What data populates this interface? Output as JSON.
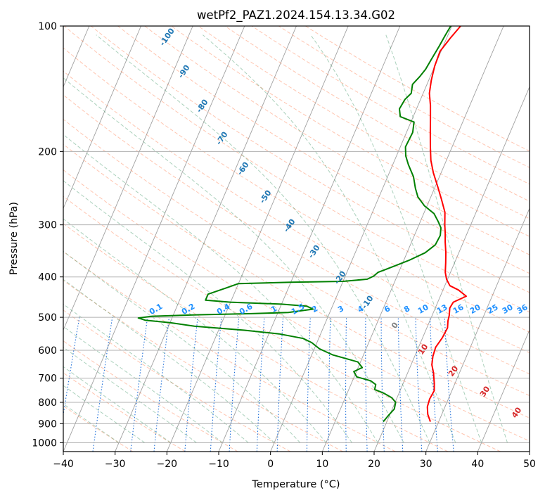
{
  "chart_data": {
    "type": "skew-t",
    "title": "wetPf2_PAZ1.2024.154.13.34.G02",
    "xlabel": "Temperature (°C)",
    "ylabel": "Pressure (hPa)",
    "xlim": [
      -40,
      50
    ],
    "ylim": [
      1050,
      100
    ],
    "y_scale": "log",
    "x_ticks": [
      -40,
      -30,
      -20,
      -10,
      0,
      10,
      20,
      30,
      40,
      50
    ],
    "x_tick_labels": [
      "−40",
      "−30",
      "−20",
      "−10",
      "0",
      "10",
      "20",
      "30",
      "40",
      "50"
    ],
    "y_ticks": [
      1000,
      900,
      800,
      700,
      600,
      500,
      400,
      300,
      200,
      100
    ],
    "y_tick_labels": [
      "1000",
      "900",
      "800",
      "700",
      "600",
      "500",
      "400",
      "300",
      "200",
      "100"
    ],
    "grid": true,
    "colors": {
      "temperature": "#ff0000",
      "dewpoint": "#008000",
      "dry_adiabat": "#ff7f50",
      "moist_adiabat": "#2e8b57",
      "mixing_ratio": "#1e6fd9",
      "isotherm": "#808080",
      "dry_label": "#1f77b4",
      "moist_label": "#d62728",
      "mixing_label": "#1e90ff"
    },
    "series": [
      {
        "points": [
          [
            28.4,
            890
          ],
          [
            27.3,
            855
          ],
          [
            26.6,
            820
          ],
          [
            26.4,
            785
          ],
          [
            26.6,
            750
          ],
          [
            26.0,
            720
          ],
          [
            25.5,
            700
          ],
          [
            25.0,
            680
          ],
          [
            24.0,
            650
          ],
          [
            23.5,
            620
          ],
          [
            23.3,
            590
          ],
          [
            23.8,
            560
          ],
          [
            24.0,
            530
          ],
          [
            23.5,
            510
          ],
          [
            23.3,
            495
          ],
          [
            22.8,
            475
          ],
          [
            23.0,
            460
          ],
          [
            25.0,
            445
          ],
          [
            23.0,
            430
          ],
          [
            21.0,
            420
          ],
          [
            19.8,
            405
          ],
          [
            19.0,
            390
          ],
          [
            18.3,
            370
          ],
          [
            17.5,
            350
          ],
          [
            16.5,
            330
          ],
          [
            15.8,
            315
          ],
          [
            15.0,
            300
          ],
          [
            14.0,
            280
          ],
          [
            12.2,
            260
          ],
          [
            10.5,
            243
          ],
          [
            8.5,
            225
          ],
          [
            7.0,
            210
          ],
          [
            5.8,
            195
          ],
          [
            4.6,
            180
          ],
          [
            3.5,
            167
          ],
          [
            2.4,
            155
          ],
          [
            1.2,
            145
          ],
          [
            0.5,
            135
          ],
          [
            0.0,
            125
          ],
          [
            -0.2,
            115
          ],
          [
            0.7,
            107
          ],
          [
            1.7,
            100
          ]
        ]
      },
      {
        "points": [
          [
            19.3,
            890
          ],
          [
            19.8,
            860
          ],
          [
            20.4,
            830
          ],
          [
            20.1,
            800
          ],
          [
            19.0,
            780
          ],
          [
            17.0,
            760
          ],
          [
            15.0,
            745
          ],
          [
            14.8,
            725
          ],
          [
            13.5,
            710
          ],
          [
            10.5,
            695
          ],
          [
            9.5,
            675
          ],
          [
            10.8,
            660
          ],
          [
            9.5,
            640
          ],
          [
            4.0,
            615
          ],
          [
            1.0,
            595
          ],
          [
            -1.0,
            575
          ],
          [
            -3.0,
            562
          ],
          [
            -8.0,
            548
          ],
          [
            -15.0,
            537
          ],
          [
            -25.0,
            525
          ],
          [
            -30.0,
            515
          ],
          [
            -35.0,
            508
          ],
          [
            -36.5,
            502
          ],
          [
            -34.0,
            497
          ],
          [
            -25.0,
            493
          ],
          [
            -15.0,
            490
          ],
          [
            -8.0,
            487
          ],
          [
            -3.5,
            478
          ],
          [
            -5.0,
            470
          ],
          [
            -10.0,
            465
          ],
          [
            -20.0,
            460
          ],
          [
            -25.0,
            455
          ],
          [
            -25.0,
            440
          ],
          [
            -22.0,
            425
          ],
          [
            -20.0,
            415
          ],
          [
            -10.0,
            412
          ],
          [
            0.0,
            410
          ],
          [
            4.5,
            405
          ],
          [
            5.5,
            398
          ],
          [
            6.0,
            390
          ],
          [
            7.0,
            385
          ],
          [
            9.0,
            375
          ],
          [
            11.0,
            365
          ],
          [
            13.5,
            350
          ],
          [
            14.8,
            335
          ],
          [
            15.0,
            318
          ],
          [
            14.5,
            305
          ],
          [
            13.5,
            295
          ],
          [
            12.0,
            282
          ],
          [
            9.5,
            270
          ],
          [
            7.5,
            257
          ],
          [
            6.3,
            245
          ],
          [
            5.0,
            230
          ],
          [
            3.0,
            215
          ],
          [
            1.8,
            205
          ],
          [
            1.0,
            195
          ],
          [
            1.2,
            180
          ],
          [
            0.6,
            170
          ],
          [
            -2.5,
            165
          ],
          [
            -3.3,
            158
          ],
          [
            -3.0,
            150
          ],
          [
            -2.3,
            145
          ],
          [
            -2.8,
            138
          ],
          [
            -2.0,
            132
          ],
          [
            -1.5,
            127
          ],
          [
            -1.2,
            120
          ],
          [
            -0.8,
            112
          ],
          [
            -0.5,
            105
          ],
          [
            -0.2,
            100
          ]
        ]
      }
    ],
    "dry_adiabat_labels": [
      "-100",
      "-90",
      "-80",
      "-70",
      "-60",
      "-50",
      "-40",
      "-30",
      "-20",
      "-10",
      "0",
      "10",
      "20",
      "30",
      "40"
    ],
    "moist_adiabat_labels": [],
    "mixing_ratio_labels": [
      "0.1",
      "0.2",
      "0.4",
      "0.6",
      "1",
      "1.5",
      "2",
      "3",
      "4",
      "6",
      "8",
      "10",
      "13",
      "16",
      "20",
      "25",
      "30",
      "36"
    ]
  }
}
